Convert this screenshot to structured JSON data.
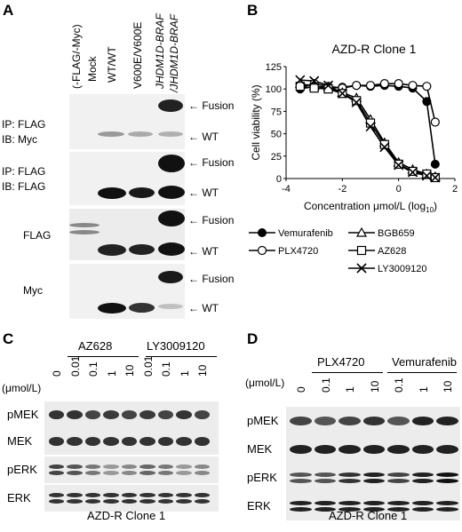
{
  "panelA": {
    "label": "A",
    "columns": [
      "(-FLAG/-Myc)",
      "Mock",
      "WT/WT",
      "V600E/V600E",
      "JHDM1D-BRAF",
      "/JHDM1D-BRAF"
    ],
    "blots": [
      {
        "label1": "IP: FLAG",
        "label2": "IB: Myc",
        "markers": [
          "Fusion",
          "WT"
        ]
      },
      {
        "label1": "IP: FLAG",
        "label2": "IB: FLAG",
        "markers": [
          "Fusion",
          "WT"
        ]
      },
      {
        "label1": "FLAG",
        "label2": "",
        "markers": [
          "Fusion",
          "WT"
        ]
      },
      {
        "label1": "Myc",
        "label2": "",
        "markers": [
          "Fusion",
          "WT"
        ]
      }
    ],
    "arrow": "←"
  },
  "panelB": {
    "label": "B",
    "chart_data": {
      "type": "line",
      "title": "AZD-R Clone 1",
      "xlabel": "Concentration μmol/L (log",
      "xlabel_sub": "10",
      "xlabel_end": ")",
      "ylabel": "Cell viability (%)",
      "xlim": [
        -4,
        2
      ],
      "ylim": [
        0,
        125
      ],
      "xticks": [
        "-4",
        "-2",
        "0",
        "2"
      ],
      "yticks": [
        "0",
        "25",
        "50",
        "75",
        "100",
        "125"
      ],
      "x": [
        -3.5,
        -3,
        -2.5,
        -2,
        -1.5,
        -1,
        -0.5,
        0,
        0.5,
        1,
        1.3
      ],
      "series": [
        {
          "name": "Vemurafenib",
          "marker": "filled-circle",
          "values": [
            100,
            103,
            101,
            102,
            104,
            103,
            104,
            103,
            101,
            86,
            16
          ]
        },
        {
          "name": "PLX4720",
          "marker": "open-circle",
          "values": [
            102,
            106,
            103,
            101,
            104,
            104,
            106,
            106,
            104,
            103,
            63
          ]
        },
        {
          "name": "BGB659",
          "marker": "triangle",
          "values": [
            106,
            103,
            102,
            96,
            90,
            66,
            40,
            18,
            10,
            5,
            2
          ]
        },
        {
          "name": "AZ628",
          "marker": "square",
          "values": [
            103,
            101,
            100,
            95,
            87,
            62,
            38,
            16,
            8,
            5,
            1
          ]
        },
        {
          "name": "LY3009120",
          "marker": "x",
          "values": [
            110,
            109,
            104,
            95,
            85,
            58,
            35,
            15,
            7,
            3,
            1
          ]
        }
      ]
    }
  },
  "panelC": {
    "label": "C",
    "group1": "AZ628",
    "group2": "LY3009120",
    "conc_unit": "(μmol/L)",
    "concs": [
      "0",
      "0.01",
      "0.1",
      "1",
      "10",
      "0.01",
      "0.1",
      "1",
      "10"
    ],
    "blots": [
      "pMEK",
      "MEK",
      "pERK",
      "ERK"
    ],
    "footer": "AZD-R Clone 1"
  },
  "panelD": {
    "label": "D",
    "group1": "PLX4720",
    "group2": "Vemurafenib",
    "conc_unit": "(μmol/L)",
    "concs": [
      "0",
      "0.1",
      "1",
      "10",
      "0.1",
      "1",
      "10"
    ],
    "blots": [
      "pMEK",
      "MEK",
      "pERK",
      "ERK"
    ],
    "footer": "AZD-R Clone 1"
  }
}
